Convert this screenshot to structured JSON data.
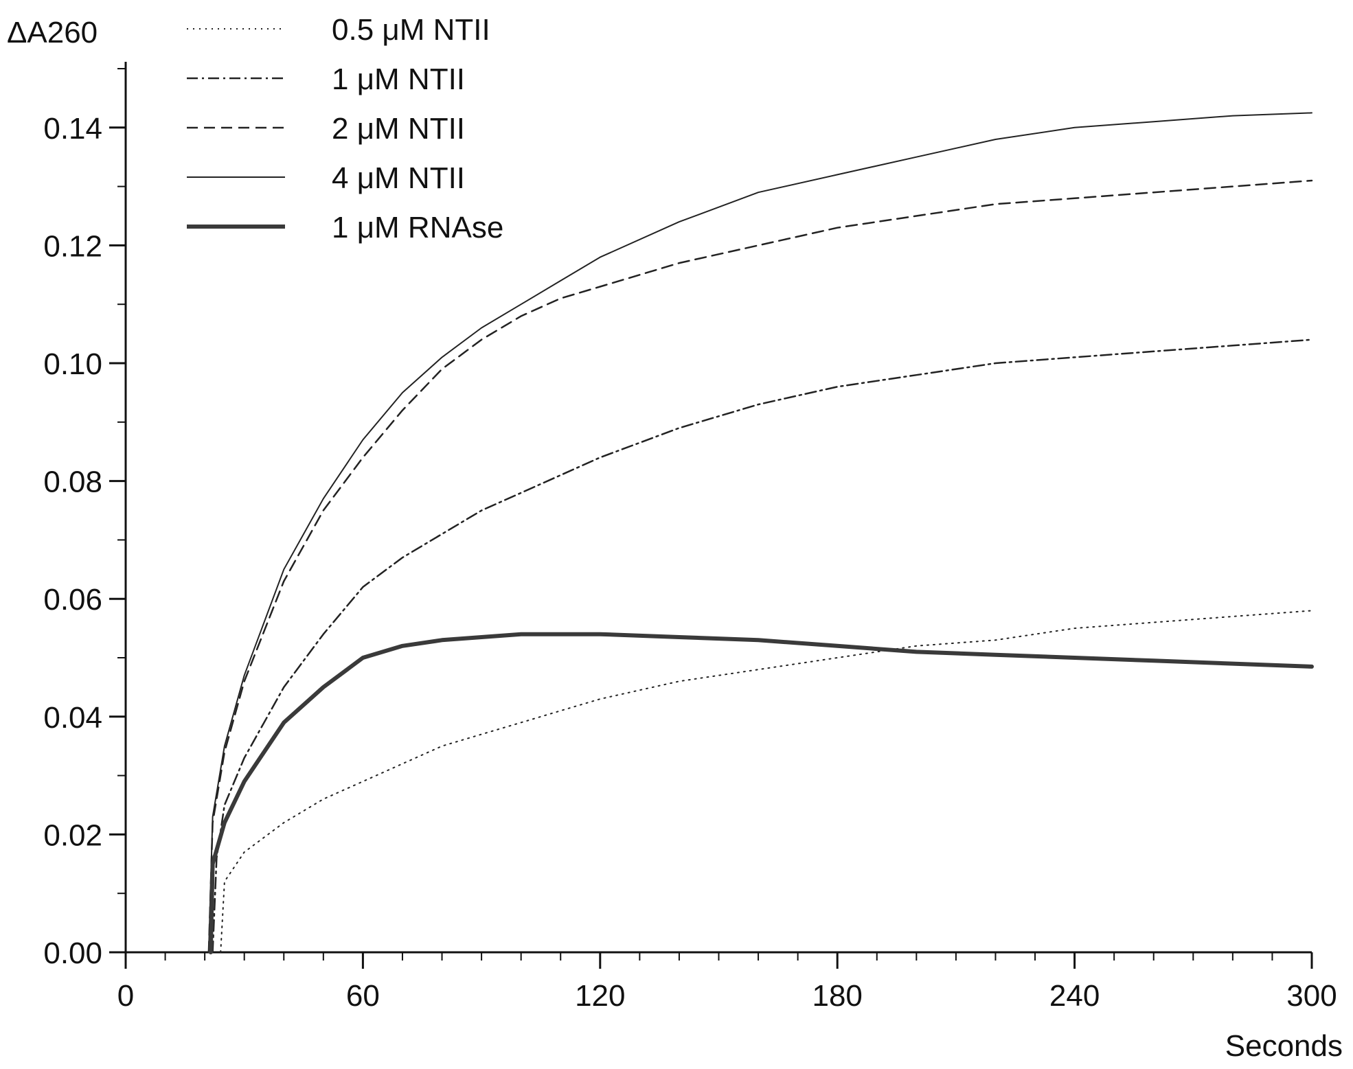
{
  "chart_data": {
    "type": "line",
    "ylabel": "ΔA260",
    "xlabel": "Seconds",
    "xlim": [
      0,
      300
    ],
    "ylim": [
      0,
      0.15
    ],
    "x_ticks": [
      0,
      60,
      120,
      180,
      240,
      300
    ],
    "x_tick_labels": [
      "0",
      "60",
      "120",
      "180",
      "240",
      "300"
    ],
    "x_minor_step": 10,
    "y_ticks": [
      0.0,
      0.02,
      0.04,
      0.06,
      0.08,
      0.1,
      0.12,
      0.14
    ],
    "y_tick_labels": [
      "0.00",
      "0.02",
      "0.04",
      "0.06",
      "0.08",
      "0.10",
      "0.12",
      "0.14"
    ],
    "y_minor_step": 0.01,
    "grid": false,
    "legend_position": "top-left",
    "series": [
      {
        "name": "0.5 μM NTII",
        "style": "dotted",
        "x": [
          24,
          25,
          30,
          40,
          50,
          60,
          70,
          80,
          90,
          100,
          110,
          120,
          140,
          160,
          180,
          200,
          220,
          240,
          260,
          280,
          300
        ],
        "y": [
          0.0,
          0.012,
          0.017,
          0.022,
          0.026,
          0.029,
          0.032,
          0.035,
          0.037,
          0.039,
          0.041,
          0.043,
          0.046,
          0.048,
          0.05,
          0.052,
          0.053,
          0.055,
          0.056,
          0.057,
          0.058
        ]
      },
      {
        "name": "1 μM NTII",
        "style": "dashdot",
        "x": [
          22,
          23,
          25,
          30,
          40,
          50,
          60,
          70,
          80,
          90,
          100,
          120,
          140,
          160,
          180,
          200,
          220,
          240,
          260,
          280,
          300
        ],
        "y": [
          0.0,
          0.016,
          0.025,
          0.033,
          0.045,
          0.054,
          0.062,
          0.067,
          0.071,
          0.075,
          0.078,
          0.084,
          0.089,
          0.093,
          0.096,
          0.098,
          0.1,
          0.101,
          0.102,
          0.103,
          0.104
        ]
      },
      {
        "name": "2 μM NTII",
        "style": "dashed",
        "x": [
          21,
          22,
          25,
          30,
          40,
          50,
          60,
          70,
          80,
          90,
          100,
          110,
          120,
          140,
          160,
          180,
          200,
          220,
          240,
          260,
          280,
          300
        ],
        "y": [
          0.0,
          0.022,
          0.034,
          0.046,
          0.063,
          0.075,
          0.084,
          0.092,
          0.099,
          0.104,
          0.108,
          0.111,
          0.113,
          0.117,
          0.12,
          0.123,
          0.125,
          0.127,
          0.128,
          0.129,
          0.13,
          0.131
        ]
      },
      {
        "name": "4 μM NTII",
        "style": "solid",
        "x": [
          21,
          22,
          25,
          30,
          40,
          50,
          60,
          70,
          80,
          90,
          100,
          110,
          120,
          140,
          160,
          180,
          200,
          220,
          240,
          260,
          280,
          300
        ],
        "y": [
          0.0,
          0.023,
          0.035,
          0.047,
          0.065,
          0.077,
          0.087,
          0.095,
          0.101,
          0.106,
          0.11,
          0.114,
          0.118,
          0.124,
          0.129,
          0.132,
          0.135,
          0.138,
          0.14,
          0.141,
          0.142,
          0.1425
        ]
      },
      {
        "name": "1 μM RNAse",
        "style": "thick",
        "x": [
          21.5,
          22,
          25,
          30,
          40,
          50,
          60,
          70,
          80,
          90,
          100,
          110,
          120,
          140,
          160,
          180,
          200,
          220,
          240,
          260,
          280,
          300
        ],
        "y": [
          0.0,
          0.015,
          0.022,
          0.029,
          0.039,
          0.045,
          0.05,
          0.052,
          0.053,
          0.0535,
          0.054,
          0.054,
          0.054,
          0.0535,
          0.053,
          0.052,
          0.051,
          0.0505,
          0.05,
          0.0495,
          0.049,
          0.0485
        ]
      }
    ]
  }
}
